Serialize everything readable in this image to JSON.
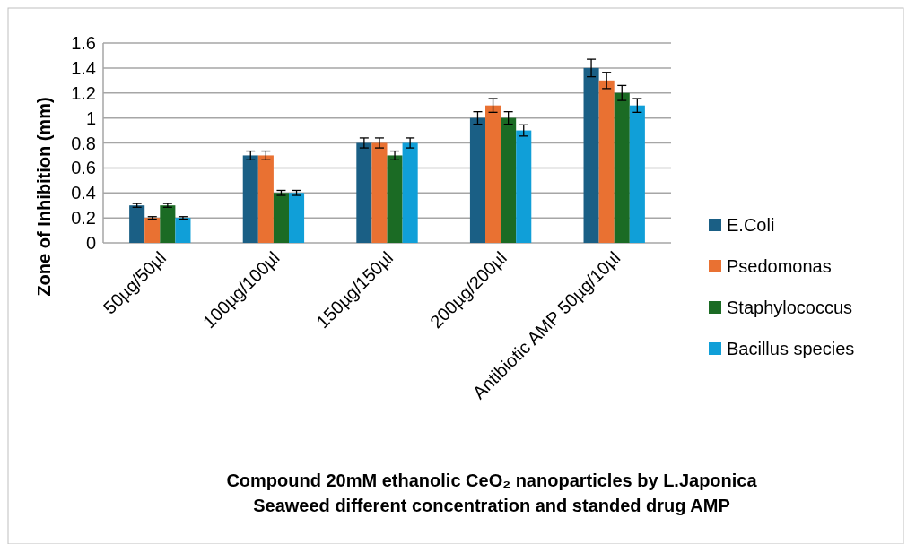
{
  "chart_data": {
    "type": "bar",
    "title": "Compound 20mM ethanolic CeO₂ nanoparticles by L.Japonica Seaweed different concentration and standed drug AMP",
    "ylabel": "Zone of Inhibition (mm)",
    "categories": [
      "50µg/50µl",
      "100µg/100µl",
      "150µg/150µl",
      "200µg/200µl",
      "Antibiotic AMP 50µg/10µl"
    ],
    "series": [
      {
        "name": "E.Coli",
        "color": "#1a5f85",
        "values": [
          0.3,
          0.7,
          0.8,
          1.0,
          1.4
        ],
        "errors": [
          0.015,
          0.035,
          0.04,
          0.05,
          0.07
        ]
      },
      {
        "name": "Psedomonas",
        "color": "#e97132",
        "values": [
          0.2,
          0.7,
          0.8,
          1.1,
          1.3
        ],
        "errors": [
          0.01,
          0.035,
          0.04,
          0.055,
          0.065
        ]
      },
      {
        "name": "Staphylococcus",
        "color": "#1b6b24",
        "values": [
          0.3,
          0.4,
          0.7,
          1.0,
          1.2
        ],
        "errors": [
          0.015,
          0.02,
          0.035,
          0.05,
          0.06
        ]
      },
      {
        "name": "Bacillus species",
        "color": "#109fd8",
        "values": [
          0.2,
          0.4,
          0.8,
          0.9,
          1.1
        ],
        "errors": [
          0.01,
          0.02,
          0.04,
          0.045,
          0.055
        ]
      }
    ],
    "ylim": [
      0,
      1.6
    ],
    "yticks": [
      0,
      0.2,
      0.4,
      0.6,
      0.8,
      1,
      1.2,
      1.4,
      1.6
    ],
    "grid": "y",
    "legend": "right"
  }
}
